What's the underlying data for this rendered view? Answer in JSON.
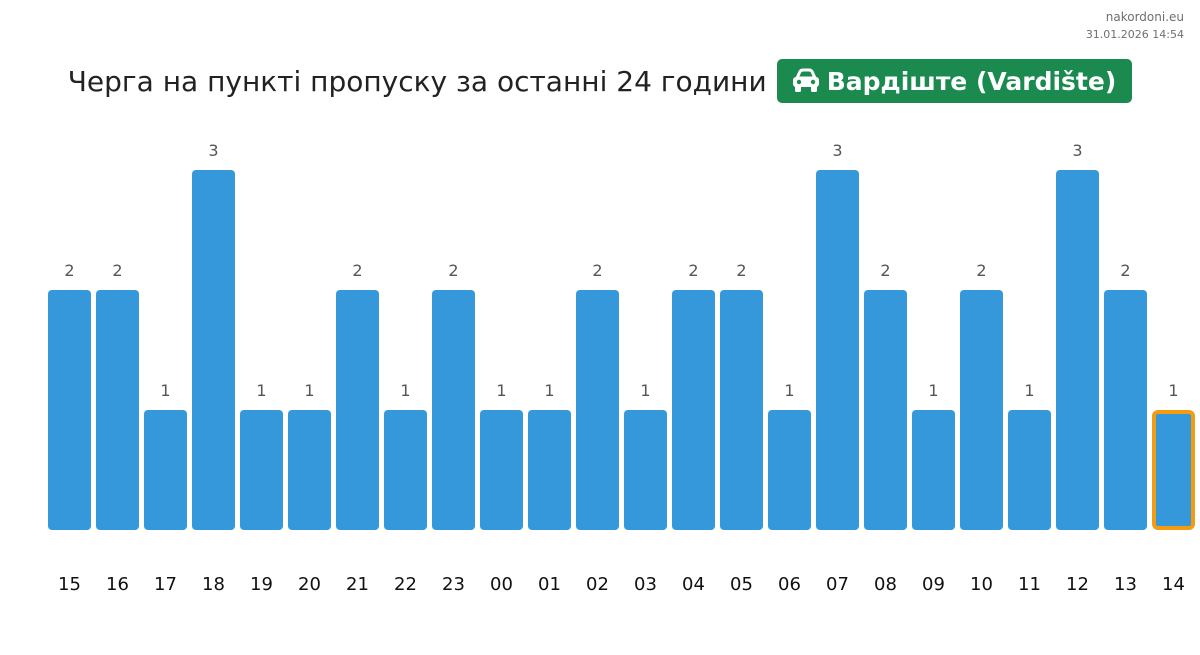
{
  "watermark": {
    "site": "nakordoni.eu",
    "timestamp": "31.01.2026 14:54"
  },
  "header": {
    "title": "Черга на пункті пропуску за останні 24 години",
    "checkpoint": "Вардіште (Vardište)",
    "checkpoint_icon": "car-icon",
    "badge_color": "#1a8a4f"
  },
  "chart_data": {
    "type": "bar",
    "categories": [
      "15",
      "16",
      "17",
      "18",
      "19",
      "20",
      "21",
      "22",
      "23",
      "00",
      "01",
      "02",
      "03",
      "04",
      "05",
      "06",
      "07",
      "08",
      "09",
      "10",
      "11",
      "12",
      "13",
      "14"
    ],
    "values": [
      2,
      2,
      1,
      3,
      1,
      1,
      2,
      1,
      2,
      1,
      1,
      2,
      1,
      2,
      2,
      1,
      3,
      2,
      1,
      2,
      1,
      3,
      2,
      1
    ],
    "ylim": [
      0,
      3
    ],
    "bar_color": "#3598db",
    "highlight_color": "#f39c12",
    "highlight_index": 23,
    "grid": false,
    "data_labels": true
  }
}
